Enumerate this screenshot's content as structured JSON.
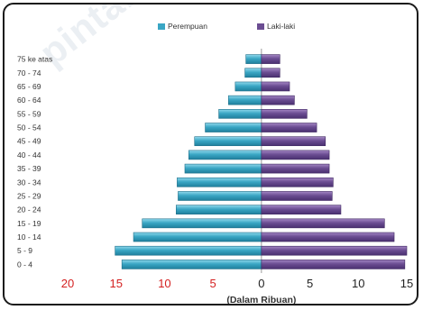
{
  "chart_data": {
    "type": "bar",
    "orientation": "horizontal",
    "style": "population-pyramid",
    "categories": [
      "0 - 4",
      "5 - 9",
      "10 - 14",
      "15 - 19",
      "20 - 24",
      "25 - 29",
      "30 - 34",
      "35 - 39",
      "40 - 44",
      "45 - 49",
      "50 - 54",
      "55 - 59",
      "60 - 64",
      "65 - 69",
      "70 - 74",
      "75 ke atas"
    ],
    "series": [
      {
        "name": "Perempuan",
        "side": "left",
        "color": "#3aa6c4",
        "values": [
          14.4,
          15.1,
          13.2,
          12.3,
          8.8,
          8.6,
          8.7,
          7.9,
          7.5,
          6.9,
          5.8,
          4.4,
          3.4,
          2.7,
          1.7,
          1.6
        ]
      },
      {
        "name": "Laki-laki",
        "side": "right",
        "color": "#6b4d92",
        "values": [
          14.8,
          15.0,
          13.7,
          12.7,
          8.2,
          7.3,
          7.4,
          7.0,
          7.0,
          6.6,
          5.7,
          4.7,
          3.4,
          2.9,
          1.9,
          1.9
        ]
      }
    ],
    "xlabel": "(Dalam Ribuan)",
    "ylabel": "",
    "x_ticks_left": [
      "20",
      "15",
      "10",
      "5"
    ],
    "x_ticks_right": [
      "0",
      "5",
      "10",
      "15"
    ],
    "x_tick_colors": {
      "left": "#d42020",
      "right": "#222222"
    },
    "xlim": [
      -20,
      15
    ],
    "grid": false,
    "legend": "top-center"
  },
  "watermark": "pintarnga"
}
